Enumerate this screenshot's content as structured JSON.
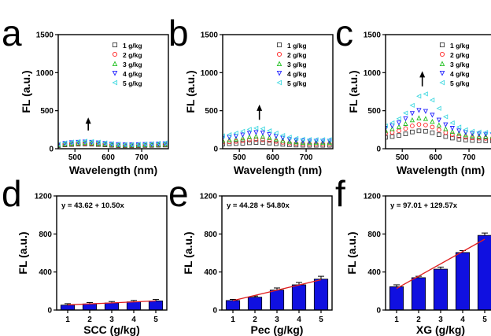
{
  "colors": {
    "series": [
      "#3c3c3c",
      "#ff2020",
      "#20c020",
      "#2020ff",
      "#40d8e0"
    ],
    "bar": "#1010e0",
    "fit_line": "#e02020",
    "axis": "#000000"
  },
  "chart_data": [
    {
      "panel": "a",
      "type": "scatter",
      "xlabel": "Wavelength (nm)",
      "ylabel": "FL (a.u.)",
      "xlim": [
        450,
        780
      ],
      "ylim": [
        0,
        1500
      ],
      "x_ticks": [
        500,
        600,
        700
      ],
      "y_ticks": [
        0,
        500,
        1000,
        1500
      ],
      "legend": "top-right",
      "annotation": "arrow pointing up at ~540 nm",
      "arrow": {
        "x": 540,
        "y_from": 240,
        "y_to": 390
      },
      "series": [
        {
          "name": "1 g/kg",
          "marker": "square",
          "x": [
            450,
            470,
            490,
            510,
            530,
            550,
            570,
            590,
            610,
            630,
            650,
            670,
            690,
            710,
            730,
            750,
            770
          ],
          "y": [
            40,
            50,
            55,
            60,
            62,
            60,
            55,
            50,
            45,
            40,
            38,
            38,
            40,
            42,
            44,
            46,
            48
          ]
        },
        {
          "name": "2 g/kg",
          "marker": "circle",
          "x": [
            450,
            470,
            490,
            510,
            530,
            550,
            570,
            590,
            610,
            630,
            650,
            670,
            690,
            710,
            730,
            750,
            770
          ],
          "y": [
            45,
            55,
            62,
            68,
            70,
            68,
            62,
            56,
            50,
            45,
            42,
            42,
            44,
            46,
            48,
            50,
            52
          ]
        },
        {
          "name": "3 g/kg",
          "marker": "triangle-up",
          "x": [
            450,
            470,
            490,
            510,
            530,
            550,
            570,
            590,
            610,
            630,
            650,
            670,
            690,
            710,
            730,
            750,
            770
          ],
          "y": [
            50,
            62,
            70,
            76,
            80,
            77,
            70,
            63,
            56,
            50,
            47,
            47,
            49,
            51,
            54,
            56,
            58
          ]
        },
        {
          "name": "4 g/kg",
          "marker": "triangle-down",
          "x": [
            450,
            470,
            490,
            510,
            530,
            550,
            570,
            590,
            610,
            630,
            650,
            670,
            690,
            710,
            730,
            750,
            770
          ],
          "y": [
            55,
            70,
            80,
            86,
            90,
            86,
            78,
            70,
            62,
            56,
            52,
            52,
            54,
            57,
            60,
            63,
            66
          ]
        },
        {
          "name": "5 g/kg",
          "marker": "triangle-left",
          "x": [
            450,
            470,
            490,
            510,
            530,
            550,
            570,
            590,
            610,
            630,
            650,
            670,
            690,
            710,
            730,
            750,
            770
          ],
          "y": [
            60,
            78,
            88,
            95,
            100,
            95,
            86,
            77,
            68,
            61,
            57,
            57,
            60,
            63,
            67,
            72,
            76
          ]
        }
      ]
    },
    {
      "panel": "b",
      "type": "scatter",
      "xlabel": "Wavelength (nm)",
      "ylabel": "FL (a.u.)",
      "xlim": [
        450,
        780
      ],
      "ylim": [
        0,
        1500
      ],
      "x_ticks": [
        500,
        600,
        700
      ],
      "y_ticks": [
        0,
        500,
        1000,
        1500
      ],
      "legend": "top-right",
      "annotation": "arrow pointing up at ~560 nm",
      "arrow": {
        "x": 560,
        "y_from": 380,
        "y_to": 560
      },
      "series": [
        {
          "name": "1 g/kg",
          "marker": "square",
          "x": [
            450,
            470,
            490,
            510,
            530,
            550,
            570,
            590,
            610,
            630,
            650,
            670,
            690,
            710,
            730,
            750,
            770
          ],
          "y": [
            60,
            65,
            68,
            72,
            78,
            82,
            80,
            74,
            66,
            58,
            52,
            48,
            46,
            45,
            45,
            45,
            45
          ]
        },
        {
          "name": "2 g/kg",
          "marker": "circle",
          "x": [
            450,
            470,
            490,
            510,
            530,
            550,
            570,
            590,
            610,
            630,
            650,
            670,
            690,
            710,
            730,
            750,
            770
          ],
          "y": [
            85,
            90,
            96,
            104,
            114,
            120,
            118,
            108,
            96,
            84,
            74,
            68,
            64,
            62,
            62,
            62,
            62
          ]
        },
        {
          "name": "3 g/kg",
          "marker": "triangle-up",
          "x": [
            450,
            470,
            490,
            510,
            530,
            550,
            570,
            590,
            610,
            630,
            650,
            670,
            690,
            710,
            730,
            750,
            770
          ],
          "y": [
            110,
            118,
            128,
            140,
            156,
            164,
            160,
            146,
            128,
            110,
            96,
            88,
            82,
            80,
            80,
            80,
            80
          ]
        },
        {
          "name": "4 g/kg",
          "marker": "triangle-down",
          "x": [
            450,
            470,
            490,
            510,
            530,
            550,
            570,
            590,
            610,
            630,
            650,
            670,
            690,
            710,
            730,
            750,
            770
          ],
          "y": [
            140,
            150,
            164,
            182,
            204,
            214,
            208,
            188,
            164,
            140,
            122,
            110,
            104,
            100,
            100,
            100,
            100
          ]
        },
        {
          "name": "5 g/kg",
          "marker": "triangle-left",
          "x": [
            450,
            470,
            490,
            510,
            530,
            550,
            570,
            590,
            610,
            630,
            650,
            670,
            690,
            710,
            730,
            750,
            770
          ],
          "y": [
            170,
            185,
            205,
            230,
            255,
            270,
            262,
            236,
            205,
            175,
            152,
            136,
            126,
            122,
            120,
            120,
            120
          ]
        }
      ]
    },
    {
      "panel": "c",
      "type": "scatter",
      "xlabel": "Wavelength (nm)",
      "ylabel": "FL (a.u.)",
      "xlim": [
        450,
        780
      ],
      "ylim": [
        0,
        1500
      ],
      "x_ticks": [
        500,
        600,
        700
      ],
      "y_ticks": [
        0,
        500,
        1000,
        1500
      ],
      "legend": "top-right",
      "annotation": "arrow pointing up at ~560 nm",
      "arrow": {
        "x": 560,
        "y_from": 820,
        "y_to": 1000
      },
      "series": [
        {
          "name": "1 g/kg",
          "marker": "square",
          "x": [
            450,
            470,
            490,
            510,
            530,
            550,
            570,
            590,
            610,
            630,
            650,
            670,
            690,
            710,
            730,
            750,
            770
          ],
          "y": [
            150,
            160,
            175,
            195,
            220,
            235,
            230,
            210,
            185,
            160,
            140,
            125,
            115,
            108,
            105,
            104,
            104
          ]
        },
        {
          "name": "2 g/kg",
          "marker": "circle",
          "x": [
            450,
            470,
            490,
            510,
            530,
            550,
            570,
            590,
            610,
            630,
            650,
            670,
            690,
            710,
            730,
            750,
            770
          ],
          "y": [
            200,
            215,
            235,
            265,
            300,
            320,
            312,
            285,
            248,
            212,
            184,
            164,
            150,
            142,
            138,
            136,
            135
          ]
        },
        {
          "name": "3 g/kg",
          "marker": "triangle-up",
          "x": [
            450,
            470,
            490,
            510,
            530,
            550,
            570,
            590,
            610,
            630,
            650,
            670,
            690,
            710,
            730,
            750,
            770
          ],
          "y": [
            240,
            262,
            290,
            330,
            378,
            405,
            395,
            358,
            310,
            262,
            226,
            200,
            182,
            172,
            166,
            164,
            163
          ]
        },
        {
          "name": "4 g/kg",
          "marker": "triangle-down",
          "x": [
            450,
            470,
            490,
            510,
            530,
            550,
            570,
            590,
            610,
            630,
            650,
            670,
            690,
            710,
            730,
            750,
            770
          ],
          "y": [
            270,
            300,
            340,
            395,
            465,
            505,
            492,
            442,
            378,
            316,
            270,
            236,
            214,
            200,
            194,
            190,
            188
          ]
        },
        {
          "name": "5 g/kg",
          "marker": "triangle-left",
          "x": [
            450,
            470,
            490,
            510,
            530,
            550,
            570,
            590,
            610,
            630,
            650,
            670,
            690,
            710,
            730,
            750,
            770
          ],
          "y": [
            300,
            340,
            395,
            470,
            570,
            690,
            720,
            640,
            530,
            420,
            340,
            285,
            250,
            230,
            220,
            215,
            212
          ]
        }
      ]
    },
    {
      "panel": "d",
      "type": "bar",
      "equation": "y = 43.62 + 10.50x",
      "xlabel": "SCC (g/kg)",
      "ylabel": "FL (a.u.)",
      "categories": [
        1,
        2,
        3,
        4,
        5
      ],
      "values": [
        52,
        64,
        74,
        86,
        96
      ],
      "errors": [
        15,
        15,
        15,
        15,
        15
      ],
      "fit": {
        "intercept": 43.62,
        "slope": 10.5
      },
      "ylim": [
        0,
        1200
      ],
      "y_ticks": [
        0,
        400,
        800,
        1200
      ]
    },
    {
      "panel": "e",
      "type": "bar",
      "equation": "y = 44.28 + 54.80x",
      "xlabel": "Pec (g/kg)",
      "ylabel": "FL (a.u.)",
      "categories": [
        1,
        2,
        3,
        4,
        5
      ],
      "values": [
        100,
        135,
        210,
        265,
        325
      ],
      "errors": [
        12,
        12,
        22,
        25,
        30
      ],
      "fit": {
        "intercept": 44.28,
        "slope": 54.8
      },
      "ylim": [
        0,
        1200
      ],
      "y_ticks": [
        0,
        400,
        800,
        1200
      ]
    },
    {
      "panel": "f",
      "type": "bar",
      "equation": "y = 97.01 + 129.57x",
      "xlabel": "XG (g/kg)",
      "ylabel": "FL (a.u.)",
      "categories": [
        1,
        2,
        3,
        4,
        5
      ],
      "values": [
        245,
        340,
        430,
        605,
        785
      ],
      "errors": [
        20,
        15,
        22,
        20,
        25
      ],
      "fit": {
        "intercept": 97.01,
        "slope": 129.57
      },
      "ylim": [
        0,
        1200
      ],
      "y_ticks": [
        0,
        400,
        800,
        1200
      ]
    }
  ]
}
